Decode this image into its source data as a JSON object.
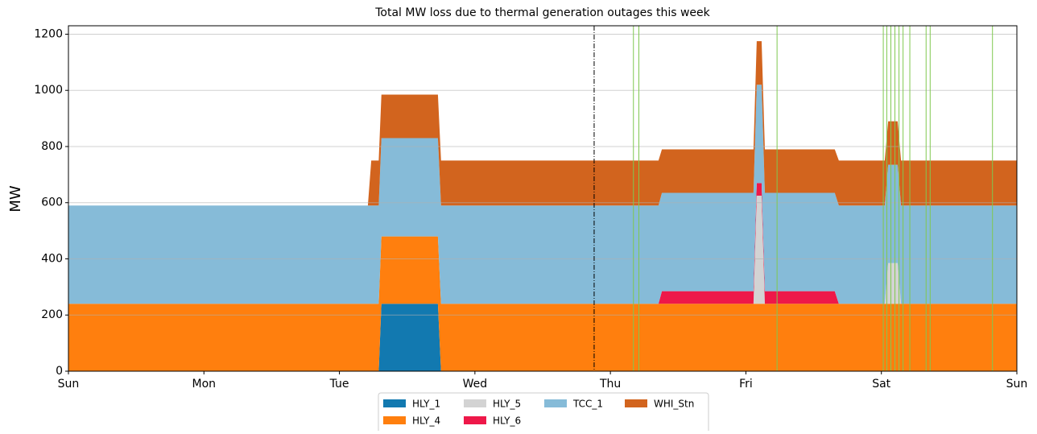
{
  "chart_data": {
    "type": "stacked-area",
    "title": "Total MW loss due to thermal generation outages this week",
    "ylabel": "MW",
    "x": [
      0,
      2.21,
      2.235,
      2.29,
      2.31,
      2.727,
      2.75,
      4.355,
      4.38,
      5.056,
      5.08,
      5.116,
      5.14,
      5.656,
      5.686,
      6.025,
      6.05,
      6.12,
      6.145,
      7
    ],
    "series": [
      {
        "name": "HLY_1",
        "color": "#1279b0",
        "values": [
          0,
          0,
          0,
          0,
          240,
          240,
          0,
          0,
          0,
          0,
          0,
          0,
          0,
          0,
          0,
          0,
          0,
          0,
          0,
          0
        ]
      },
      {
        "name": "HLY_4",
        "color": "#ff7f0e",
        "values": [
          240,
          240,
          240,
          240,
          240,
          240,
          240,
          240,
          240,
          240,
          240,
          240,
          240,
          240,
          240,
          240,
          240,
          240,
          240,
          240
        ]
      },
      {
        "name": "HLY_5",
        "color": "#d3d3d3",
        "values": [
          0,
          0,
          0,
          0,
          0,
          0,
          0,
          0,
          0,
          0,
          385,
          385,
          0,
          0,
          0,
          0,
          145,
          145,
          0,
          0
        ]
      },
      {
        "name": "HLY_6",
        "color": "#ee1849",
        "values": [
          0,
          0,
          0,
          0,
          0,
          0,
          0,
          0,
          45,
          45,
          45,
          45,
          45,
          45,
          0,
          0,
          0,
          0,
          0,
          0
        ]
      },
      {
        "name": "TCC_1",
        "color": "#86bbd8",
        "values": [
          350,
          350,
          350,
          350,
          350,
          350,
          350,
          350,
          350,
          350,
          350,
          350,
          350,
          350,
          350,
          350,
          350,
          350,
          350,
          350
        ]
      },
      {
        "name": "WHI_Stn",
        "color": "#d2641e",
        "values": [
          0,
          0,
          160,
          160,
          155,
          155,
          160,
          160,
          155,
          155,
          155,
          155,
          155,
          155,
          160,
          160,
          155,
          155,
          160,
          160
        ]
      }
    ],
    "xlim": [
      0,
      7
    ],
    "xticks": [
      {
        "value": 0,
        "label": "Sun"
      },
      {
        "value": 1,
        "label": "Mon"
      },
      {
        "value": 2,
        "label": "Tue"
      },
      {
        "value": 3,
        "label": "Wed"
      },
      {
        "value": 4,
        "label": "Thu"
      },
      {
        "value": 5,
        "label": "Fri"
      },
      {
        "value": 6,
        "label": "Sat"
      },
      {
        "value": 7,
        "label": "Sun"
      }
    ],
    "ylim": [
      0,
      1230
    ],
    "yticks": [
      0,
      200,
      400,
      600,
      800,
      1000,
      1200
    ],
    "grid": true,
    "now_line": {
      "x": 3.88,
      "color": "#000000"
    },
    "markers": {
      "color": "#80c850",
      "x": [
        4.17,
        4.21,
        5.23,
        6.014,
        6.04,
        6.07,
        6.1,
        6.13,
        6.16,
        6.21,
        6.33,
        6.36,
        6.82
      ]
    },
    "legend": "below",
    "legend_columns": 4
  }
}
